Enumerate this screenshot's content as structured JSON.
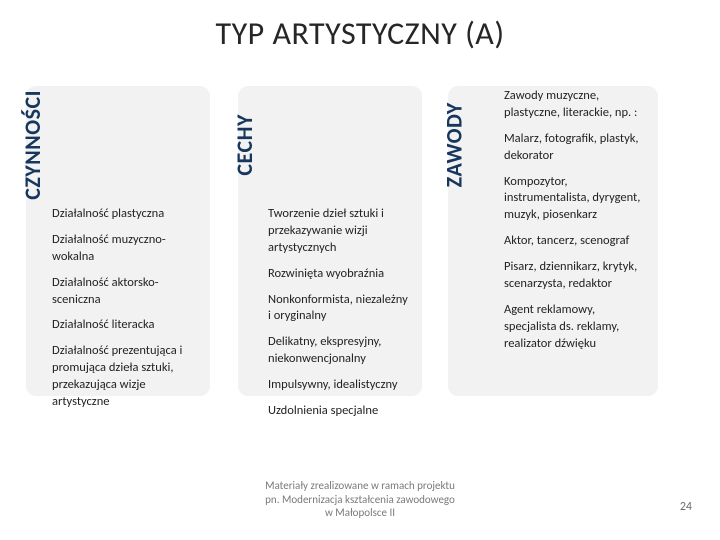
{
  "colors": {
    "background": "#ffffff",
    "panel_bg": "#f2f2f2",
    "label_color": "#17365d",
    "arrow_color": "#8a8a8a",
    "text_color": "#222222",
    "footer_color": "#7a7a7a"
  },
  "layout": {
    "type": "infographic",
    "panel_border_radius": 10,
    "title_fontsize": 32,
    "body_fontsize": 12.5,
    "vlabel_fontsize": 22
  },
  "title": "TYP ARTYSTYCZNY (A)",
  "col1": {
    "label": "CZYNNOŚCI",
    "items": [
      "Działalność plastyczna",
      "Działalność muzyczno-wokalna",
      "Działalność aktorsko-sceniczna",
      "Działalność literacka",
      "Działalność prezentująca i promująca dzieła sztuki, przekazująca wizje artystyczne"
    ]
  },
  "col2": {
    "label": "CECHY",
    "items": [
      "Tworzenie dzieł sztuki i przekazywanie wizji artystycznych",
      "Rozwinięta wyobraźnia",
      "Nonkonformista, niezależny i oryginalny",
      "Delikatny, ekspresyjny, niekonwencjonalny",
      "Impulsywny, idealistyczny",
      "Uzdolnienia specjalne"
    ]
  },
  "col3": {
    "label": "ZAWODY",
    "items": [
      "Zawody muzyczne, plastyczne, literackie, np. :",
      "Malarz, fotografik, plastyk, dekorator",
      "Kompozytor, instrumentalista, dyrygent, muzyk, piosenkarz",
      "Aktor, tancerz, scenograf",
      "Pisarz, dziennikarz, krytyk, scenarzysta, redaktor",
      "Agent reklamowy, specjalista ds. reklamy, realizator dźwięku"
    ]
  },
  "footer": {
    "line1": "Materiały zrealizowane w ramach projektu",
    "line2": "pn. Modernizacja kształcenia zawodowego",
    "line3": "w Małopolsce II"
  },
  "page_number": "24"
}
